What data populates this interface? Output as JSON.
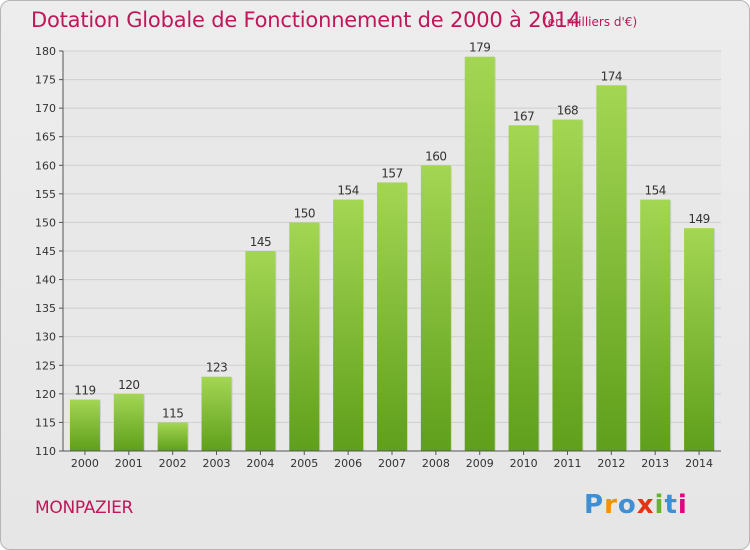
{
  "title": "Dotation Globale de Fonctionnement de 2000 à 2014",
  "subtitle": "(en milliers d'€)",
  "city": "MONPAZIER",
  "logo": {
    "text": "Proxiti",
    "letters": [
      "P",
      "r",
      "o",
      "x",
      "i",
      "t",
      "i"
    ],
    "colors": [
      "#3f8fd2",
      "#f39200",
      "#3f8fd2",
      "#e63312",
      "#67b32e",
      "#3f8fd2",
      "#e6007e"
    ]
  },
  "colors": {
    "accent": "#c0165a",
    "bar_light": "#9ed34c",
    "bar_dark": "#62a31e"
  },
  "chart_data": {
    "type": "bar",
    "title": "Dotation Globale de Fonctionnement de 2000 à 2014",
    "categories": [
      "2000",
      "2001",
      "2002",
      "2003",
      "2004",
      "2005",
      "2006",
      "2007",
      "2008",
      "2009",
      "2010",
      "2011",
      "2012",
      "2013",
      "2014"
    ],
    "values": [
      119,
      120,
      115,
      123,
      145,
      150,
      154,
      157,
      160,
      179,
      167,
      168,
      174,
      154,
      149
    ],
    "ylim": [
      110,
      180
    ],
    "yticks": [
      110,
      115,
      120,
      125,
      130,
      135,
      140,
      145,
      150,
      155,
      160,
      165,
      170,
      175,
      180
    ],
    "grid": true,
    "xlabel": "",
    "ylabel": ""
  }
}
